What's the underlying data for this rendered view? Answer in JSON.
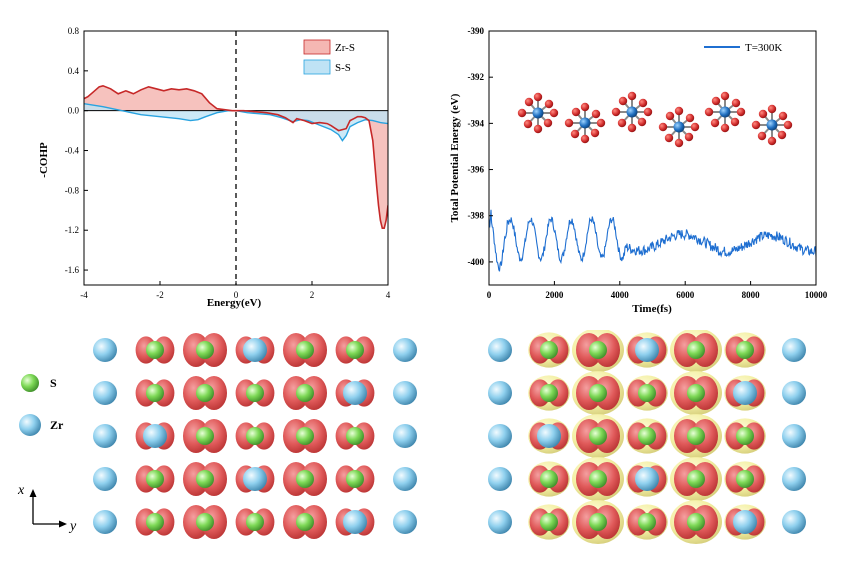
{
  "colors": {
    "zrs_line": "#c62828",
    "zrs_fill": "#f5b7b3",
    "ss_line": "#29a3e0",
    "ss_fill": "#bfe3f5",
    "traj_line": "#1f6fd1",
    "s_atom": "#7ed957",
    "zr_atom": "#7ec8e8",
    "iso_red": "#e05a5a",
    "iso_yellow": "#f2ee9a"
  },
  "chart_data": [
    {
      "type": "area",
      "xlabel": "Energy(eV)",
      "ylabel": "-COHP",
      "xlim": [
        -4,
        4
      ],
      "ylim": [
        -1.75,
        0.8
      ],
      "xticks": [
        "-4",
        "-2",
        "0",
        "2",
        "4"
      ],
      "yticks": [
        "0.8",
        "0.4",
        "0.0",
        "-0.4",
        "-0.8",
        "-1.2",
        "-1.6"
      ],
      "fermi_level": 0,
      "legend": {
        "placement": "top-right",
        "items": [
          "Zr-S",
          "S-S"
        ]
      },
      "series": [
        {
          "name": "Zr-S",
          "x": [
            -4,
            -3.9,
            -3.75,
            -3.6,
            -3.5,
            -3.3,
            -3.1,
            -2.9,
            -2.7,
            -2.5,
            -2.3,
            -2.1,
            -1.9,
            -1.7,
            -1.5,
            -1.3,
            -1.1,
            -0.9,
            -0.7,
            -0.5,
            -0.3,
            -0.1,
            0,
            0.2,
            0.5,
            0.8,
            1.1,
            1.3,
            1.5,
            1.6,
            1.8,
            2.0,
            2.2,
            2.4,
            2.5,
            2.7,
            2.9,
            3.0,
            3.1,
            3.2,
            3.3,
            3.4,
            3.5,
            3.6,
            3.7,
            3.75,
            3.8,
            3.85,
            3.9,
            3.95,
            4.0
          ],
          "y": [
            0.12,
            0.14,
            0.19,
            0.24,
            0.25,
            0.22,
            0.17,
            0.2,
            0.17,
            0.21,
            0.24,
            0.22,
            0.2,
            0.22,
            0.21,
            0.22,
            0.2,
            0.17,
            0.08,
            0.02,
            0.01,
            0.0,
            0.0,
            0.0,
            -0.01,
            -0.02,
            -0.04,
            -0.07,
            -0.12,
            -0.08,
            -0.1,
            -0.13,
            -0.12,
            -0.13,
            -0.15,
            -0.2,
            -0.18,
            -0.1,
            -0.08,
            -0.06,
            -0.06,
            -0.07,
            -0.1,
            -0.3,
            -0.75,
            -0.95,
            -1.1,
            -1.18,
            -1.18,
            -1.1,
            -0.95
          ]
        },
        {
          "name": "S-S",
          "x": [
            -4,
            -3.5,
            -3.0,
            -2.5,
            -2.0,
            -1.5,
            -1.2,
            -1.0,
            -0.8,
            -0.5,
            -0.2,
            0,
            0.3,
            0.6,
            0.9,
            1.2,
            1.5,
            1.7,
            1.9,
            2.1,
            2.3,
            2.5,
            2.7,
            2.8,
            2.9,
            3.0,
            3.2,
            3.4,
            3.6,
            3.8,
            4.0
          ],
          "y": [
            0.07,
            0.04,
            0.0,
            -0.04,
            -0.06,
            -0.08,
            -0.1,
            -0.09,
            -0.06,
            -0.02,
            0.0,
            0.0,
            -0.02,
            -0.03,
            -0.04,
            -0.07,
            -0.11,
            -0.09,
            -0.1,
            -0.13,
            -0.16,
            -0.19,
            -0.24,
            -0.3,
            -0.25,
            -0.16,
            -0.12,
            -0.09,
            -0.1,
            -0.12,
            -0.13
          ]
        }
      ]
    },
    {
      "type": "line",
      "xlabel": "Time(fs)",
      "ylabel": "Total Potential Energy (eV)",
      "xlim": [
        0,
        10000
      ],
      "ylim": [
        -401,
        -390
      ],
      "xticks": [
        "0",
        "2000",
        "4000",
        "6000",
        "8000",
        "10000"
      ],
      "yticks": [
        "-390",
        "-392",
        "-394",
        "-396",
        "-398",
        "-400"
      ],
      "legend": {
        "placement": "top-right",
        "items": [
          "T=300K"
        ]
      },
      "series": [
        {
          "name": "T=300K"
        }
      ]
    }
  ],
  "legend_atoms": {
    "s_label": "S",
    "zr_label": "Zr"
  },
  "axes_labels": {
    "x": "x",
    "y": "y"
  }
}
